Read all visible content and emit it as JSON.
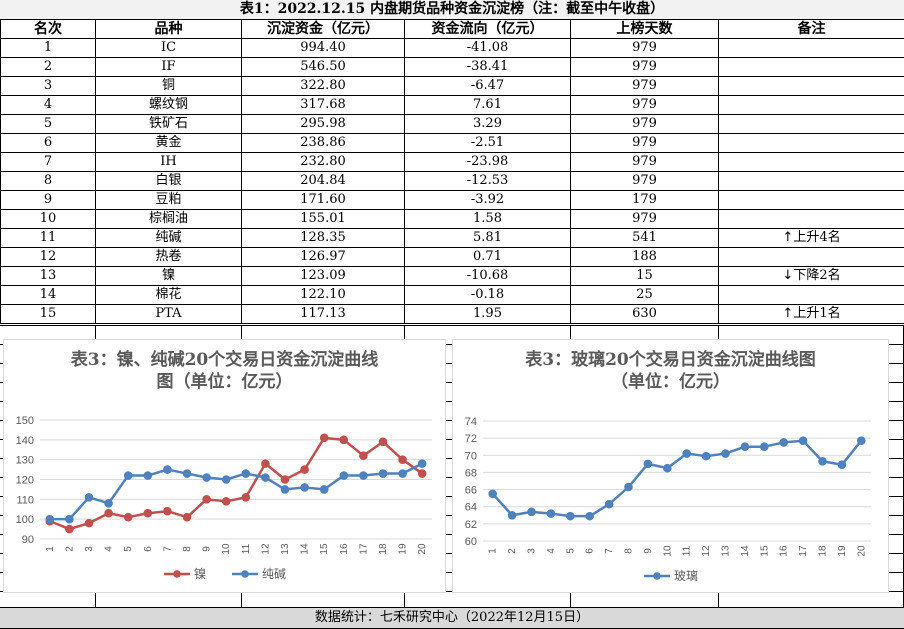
{
  "table": {
    "title": "表1：2022.12.15 内盘期货品种资金沉淀榜（注：截至中午收盘）",
    "headers": [
      "名次",
      "品种",
      "沉淀资金（亿元）",
      "资金流向（亿元）",
      "上榜天数",
      "备注"
    ],
    "rows": [
      {
        "rank": "1",
        "name": "IC",
        "fund": "994.40",
        "flow": "-41.08",
        "days": "979",
        "note": ""
      },
      {
        "rank": "2",
        "name": "IF",
        "fund": "546.50",
        "flow": "-38.41",
        "days": "979",
        "note": ""
      },
      {
        "rank": "3",
        "name": "铜",
        "fund": "322.80",
        "flow": "-6.47",
        "days": "979",
        "note": ""
      },
      {
        "rank": "4",
        "name": "螺纹钢",
        "fund": "317.68",
        "flow": "7.61",
        "days": "979",
        "note": ""
      },
      {
        "rank": "5",
        "name": "铁矿石",
        "fund": "295.98",
        "flow": "3.29",
        "days": "979",
        "note": ""
      },
      {
        "rank": "6",
        "name": "黄金",
        "fund": "238.86",
        "flow": "-2.51",
        "days": "979",
        "note": ""
      },
      {
        "rank": "7",
        "name": "IH",
        "fund": "232.80",
        "flow": "-23.98",
        "days": "979",
        "note": ""
      },
      {
        "rank": "8",
        "name": "白银",
        "fund": "204.84",
        "flow": "-12.53",
        "days": "979",
        "note": ""
      },
      {
        "rank": "9",
        "name": "豆粕",
        "fund": "171.60",
        "flow": "-3.92",
        "days": "179",
        "note": ""
      },
      {
        "rank": "10",
        "name": "棕榈油",
        "fund": "155.01",
        "flow": "1.58",
        "days": "979",
        "note": ""
      },
      {
        "rank": "11",
        "name": "纯碱",
        "fund": "128.35",
        "flow": "5.81",
        "days": "541",
        "note": "上升4名",
        "arrow": "↑"
      },
      {
        "rank": "12",
        "name": "热卷",
        "fund": "126.97",
        "flow": "0.71",
        "days": "188",
        "note": ""
      },
      {
        "rank": "13",
        "name": "镍",
        "fund": "123.09",
        "flow": "-10.68",
        "days": "15",
        "note": "下降2名",
        "arrow": "↓"
      },
      {
        "rank": "14",
        "name": "棉花",
        "fund": "122.10",
        "flow": "-0.18",
        "days": "25",
        "note": ""
      },
      {
        "rank": "15",
        "name": "PTA",
        "fund": "117.13",
        "flow": "1.95",
        "days": "630",
        "note": "上升1名",
        "arrow": "↑"
      }
    ]
  },
  "footer": "数据统计：七禾研究中心（2022年12月15日）",
  "colors": {
    "nickel": "#c0504d",
    "soda": "#4f81bd",
    "glass": "#4f81bd",
    "grid": "#d9d9d9",
    "axis_text": "#595959"
  },
  "chart_data": [
    {
      "type": "line",
      "title_line1": "表3：镍、纯碱20个交易日资金沉淀曲线",
      "title_line2": "图（单位：亿元）",
      "categories": [
        "1",
        "2",
        "3",
        "4",
        "5",
        "6",
        "7",
        "8",
        "9",
        "10",
        "11",
        "12",
        "13",
        "14",
        "15",
        "16",
        "17",
        "18",
        "19",
        "20"
      ],
      "ylim": [
        90,
        150
      ],
      "yticks": [
        90,
        100,
        110,
        120,
        130,
        140,
        150
      ],
      "grid": true,
      "legend": "bottom",
      "series": [
        {
          "name": "镍",
          "color": "#c0504d",
          "values": [
            99,
            95,
            98,
            103,
            101,
            103,
            104,
            101,
            110,
            109,
            111,
            128,
            120,
            125,
            141,
            140,
            132,
            139,
            130,
            123
          ]
        },
        {
          "name": "纯碱",
          "color": "#4f81bd",
          "values": [
            100,
            100,
            111,
            108,
            122,
            122,
            125,
            123,
            121,
            120,
            123,
            121,
            115,
            116,
            115,
            122,
            122,
            123,
            123,
            128
          ]
        }
      ]
    },
    {
      "type": "line",
      "title_line1": "表3：玻璃20个交易日资金沉淀曲线图",
      "title_line2": "（单位：亿元）",
      "categories": [
        "1",
        "2",
        "3",
        "4",
        "5",
        "6",
        "7",
        "8",
        "9",
        "10",
        "11",
        "12",
        "13",
        "14",
        "15",
        "16",
        "17",
        "18",
        "19",
        "20"
      ],
      "ylim": [
        60,
        74
      ],
      "yticks": [
        60,
        62,
        64,
        66,
        68,
        70,
        72,
        74
      ],
      "grid": true,
      "legend": "bottom",
      "series": [
        {
          "name": "玻璃",
          "color": "#4f81bd",
          "values": [
            65.5,
            63.0,
            63.4,
            63.2,
            62.9,
            62.9,
            64.3,
            66.3,
            69.0,
            68.5,
            70.2,
            69.9,
            70.2,
            71.0,
            71.0,
            71.5,
            71.7,
            69.3,
            68.9,
            71.7
          ]
        }
      ]
    }
  ]
}
